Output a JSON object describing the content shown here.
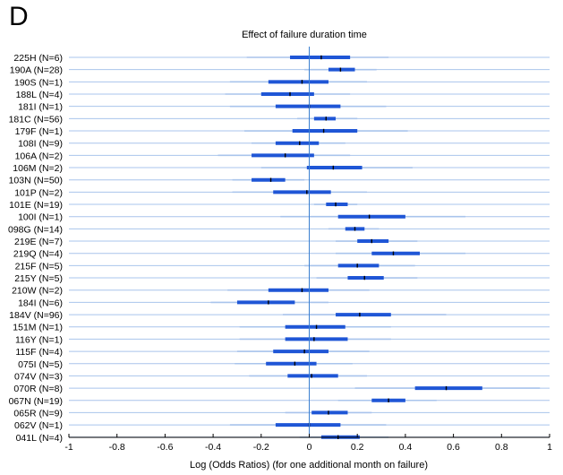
{
  "panel_label": "D",
  "chart_data": {
    "type": "forest",
    "title": "Effect of failure duration time",
    "xlabel": "Log (Odds Ratios) (for one additional month on failure)",
    "ylabel": "",
    "xlim": [
      -1,
      1
    ],
    "xticks": [
      "-1",
      "-0.8",
      "-0.6",
      "-0.4",
      "-0.2",
      "0",
      "0.2",
      "0.4",
      "0.6",
      "0.8",
      "1"
    ],
    "reference_line": 0,
    "grid": false,
    "colors": {
      "thin": "#a9c4ec",
      "thick": "#1f56d6",
      "ref": "#3a7fd0",
      "median": "#000000"
    },
    "rows": [
      {
        "label": "225H (N=6)",
        "median": 0.05,
        "q25": -0.08,
        "q75": 0.17,
        "p5": -0.26,
        "p95": 0.33
      },
      {
        "label": "190A (N=28)",
        "median": 0.13,
        "q25": 0.08,
        "q75": 0.19,
        "p5": -0.02,
        "p95": 0.28
      },
      {
        "label": "190S (N=1)",
        "median": -0.03,
        "q25": -0.17,
        "q75": 0.08,
        "p5": -0.33,
        "p95": 0.24
      },
      {
        "label": "188L (N=4)",
        "median": -0.08,
        "q25": -0.2,
        "q75": 0.02,
        "p5": -0.35,
        "p95": 0.17
      },
      {
        "label": "181I (N=1)",
        "median": 0.0,
        "q25": -0.14,
        "q75": 0.13,
        "p5": -0.33,
        "p95": 0.32
      },
      {
        "label": "181C (N=56)",
        "median": 0.07,
        "q25": 0.02,
        "q75": 0.11,
        "p5": -0.05,
        "p95": 0.2
      },
      {
        "label": "179F (N=1)",
        "median": 0.06,
        "q25": -0.07,
        "q75": 0.2,
        "p5": -0.27,
        "p95": 0.41
      },
      {
        "label": "108I (N=9)",
        "median": -0.04,
        "q25": -0.14,
        "q75": 0.04,
        "p5": -0.24,
        "p95": 0.15
      },
      {
        "label": "106A (N=2)",
        "median": -0.1,
        "q25": -0.24,
        "q75": 0.02,
        "p5": -0.38,
        "p95": 0.17
      },
      {
        "label": "106M (N=2)",
        "median": 0.1,
        "q25": -0.01,
        "q75": 0.22,
        "p5": -0.2,
        "p95": 0.43
      },
      {
        "label": "103N (N=50)",
        "median": -0.16,
        "q25": -0.24,
        "q75": -0.1,
        "p5": -0.32,
        "p95": -0.02
      },
      {
        "label": "101P (N=2)",
        "median": -0.01,
        "q25": -0.15,
        "q75": 0.09,
        "p5": -0.32,
        "p95": 0.24
      },
      {
        "label": "101E (N=19)",
        "median": 0.11,
        "q25": 0.07,
        "q75": 0.16,
        "p5": 0.02,
        "p95": 0.2
      },
      {
        "label": "100I (N=1)",
        "median": 0.25,
        "q25": 0.12,
        "q75": 0.4,
        "p5": -0.12,
        "p95": 0.65
      },
      {
        "label": "098G (N=14)",
        "median": 0.19,
        "q25": 0.15,
        "q75": 0.23,
        "p5": 0.08,
        "p95": 0.29
      },
      {
        "label": "219E (N=7)",
        "median": 0.26,
        "q25": 0.2,
        "q75": 0.33,
        "p5": 0.11,
        "p95": 0.45
      },
      {
        "label": "219Q (N=4)",
        "median": 0.35,
        "q25": 0.26,
        "q75": 0.46,
        "p5": 0.11,
        "p95": 0.65
      },
      {
        "label": "215F (N=5)",
        "median": 0.2,
        "q25": 0.12,
        "q75": 0.29,
        "p5": -0.02,
        "p95": 0.44
      },
      {
        "label": "215Y (N=5)",
        "median": 0.23,
        "q25": 0.16,
        "q75": 0.31,
        "p5": 0.03,
        "p95": 0.45
      },
      {
        "label": "210W (N=2)",
        "median": -0.03,
        "q25": -0.17,
        "q75": 0.08,
        "p5": -0.34,
        "p95": 0.25
      },
      {
        "label": "184I (N=6)",
        "median": -0.17,
        "q25": -0.3,
        "q75": -0.06,
        "p5": -0.41,
        "p95": 0.08
      },
      {
        "label": "184V (N=96)",
        "median": 0.21,
        "q25": 0.11,
        "q75": 0.34,
        "p5": -0.11,
        "p95": 0.57
      },
      {
        "label": "151M (N=1)",
        "median": 0.03,
        "q25": -0.1,
        "q75": 0.15,
        "p5": -0.29,
        "p95": 0.34
      },
      {
        "label": "116Y (N=1)",
        "median": 0.02,
        "q25": -0.1,
        "q75": 0.16,
        "p5": -0.29,
        "p95": 0.34
      },
      {
        "label": "115F (N=4)",
        "median": -0.02,
        "q25": -0.15,
        "q75": 0.08,
        "p5": -0.3,
        "p95": 0.25
      },
      {
        "label": "075I (N=5)",
        "median": -0.06,
        "q25": -0.18,
        "q75": 0.03,
        "p5": -0.31,
        "p95": 0.18
      },
      {
        "label": "074V (N=3)",
        "median": 0.01,
        "q25": -0.09,
        "q75": 0.12,
        "p5": -0.25,
        "p95": 0.24
      },
      {
        "label": "070R (N=8)",
        "median": 0.57,
        "q25": 0.44,
        "q75": 0.72,
        "p5": 0.19,
        "p95": 0.96
      },
      {
        "label": "067N (N=19)",
        "median": 0.33,
        "q25": 0.26,
        "q75": 0.4,
        "p5": 0.12,
        "p95": 0.53
      },
      {
        "label": "065R (N=9)",
        "median": 0.08,
        "q25": 0.01,
        "q75": 0.16,
        "p5": -0.1,
        "p95": 0.26
      },
      {
        "label": "062V (N=1)",
        "median": 0.0,
        "q25": -0.14,
        "q75": 0.13,
        "p5": -0.33,
        "p95": 0.32
      },
      {
        "label": "041L (N=4)",
        "median": 0.12,
        "q25": 0.05,
        "q75": 0.21,
        "p5": -0.04,
        "p95": 0.33
      }
    ]
  }
}
